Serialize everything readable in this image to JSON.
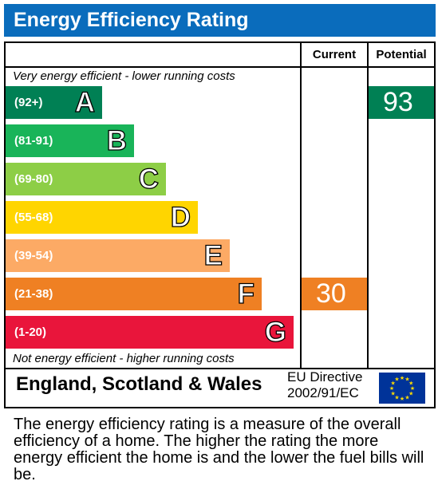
{
  "title": "Energy Efficiency Rating",
  "chart_data": {
    "type": "bar",
    "columns": [
      "Current",
      "Potential"
    ],
    "top_note": "Very energy efficient - lower running costs",
    "bottom_note": "Not energy efficient - higher running costs",
    "bands": [
      {
        "letter": "A",
        "range": "(92+)",
        "min": 92,
        "max": 100,
        "color": "#008054"
      },
      {
        "letter": "B",
        "range": "(81-91)",
        "min": 81,
        "max": 91,
        "color": "#19b459"
      },
      {
        "letter": "C",
        "range": "(69-80)",
        "min": 69,
        "max": 80,
        "color": "#8dce46"
      },
      {
        "letter": "D",
        "range": "(55-68)",
        "min": 55,
        "max": 68,
        "color": "#ffd500"
      },
      {
        "letter": "E",
        "range": "(39-54)",
        "min": 39,
        "max": 54,
        "color": "#fcaa65"
      },
      {
        "letter": "F",
        "range": "(21-38)",
        "min": 21,
        "max": 38,
        "color": "#ef8023"
      },
      {
        "letter": "G",
        "range": "(1-20)",
        "min": 1,
        "max": 20,
        "color": "#e9153b"
      }
    ],
    "current": {
      "value": 30,
      "band": "F"
    },
    "potential": {
      "value": 93,
      "band": "A"
    }
  },
  "footer": {
    "country": "England, Scotland & Wales",
    "directive_line1": "EU Directive",
    "directive_line2": "2002/91/EC",
    "flag_icon": "eu-flag-icon"
  },
  "explanation": "The energy efficiency rating is a measure of the overall efficiency of a home. The higher the rating the more energy efficient the home is and the lower the fuel bills will be."
}
